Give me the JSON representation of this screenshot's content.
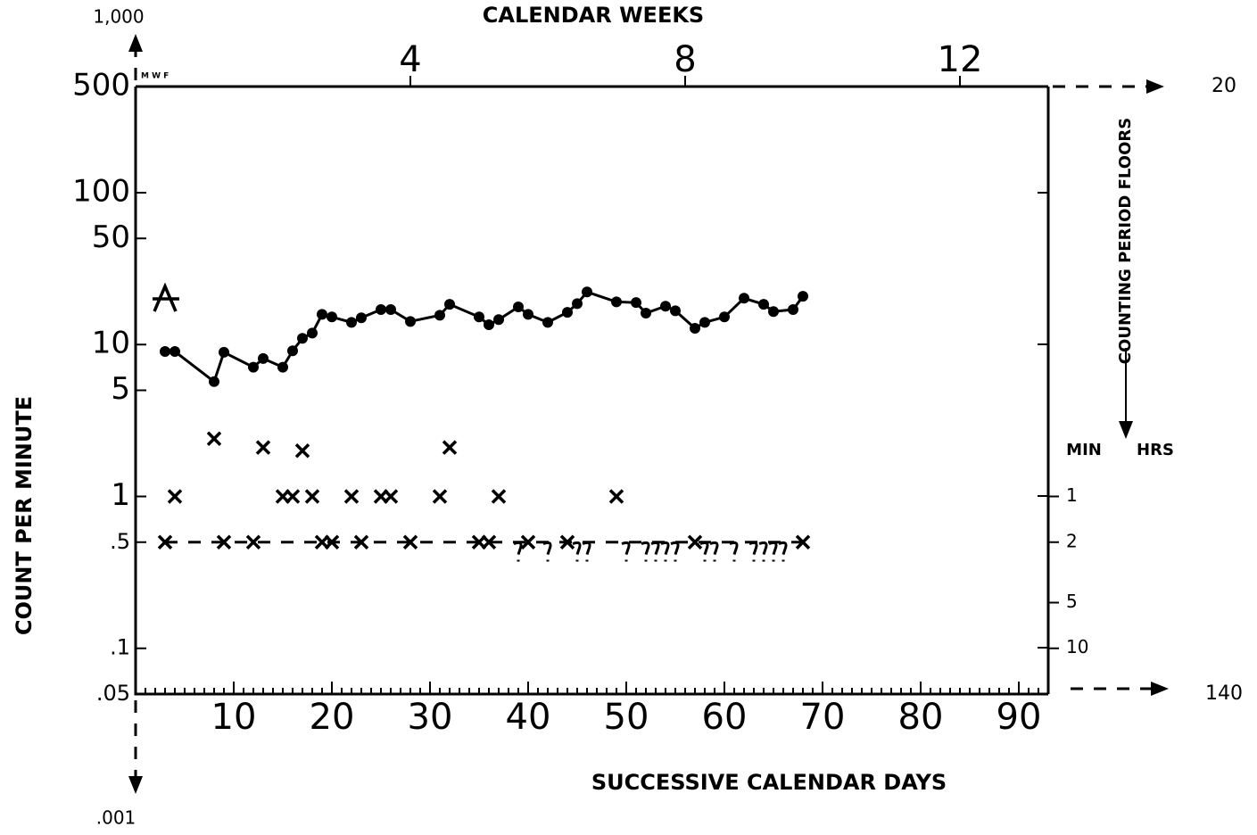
{
  "chart_data": {
    "type": "line",
    "title": "CALENDAR WEEKS",
    "x_label": "SUCCESSIVE CALENDAR DAYS",
    "y_label": "COUNT PER MINUTE",
    "y2_label": "COUNTING PERIOD FLOORS",
    "y2_units": [
      "MIN",
      "HRS"
    ],
    "annotations": {
      "top_extent": "1,000",
      "bottom_extent": ".001",
      "right_top": "20",
      "right_bottom": "140",
      "days": "M W F"
    },
    "log_y": true,
    "xlim": [
      0,
      93
    ],
    "xticks": [
      10,
      20,
      30,
      40,
      50,
      60,
      70,
      80,
      90
    ],
    "x2ticks": [
      {
        "value": 28,
        "label": "4"
      },
      {
        "value": 56,
        "label": "8"
      },
      {
        "value": 84,
        "label": "12"
      }
    ],
    "ylim": [
      0.05,
      500
    ],
    "yticks": [
      500,
      100,
      50,
      10,
      5,
      1,
      {
        "value": 0.5,
        "label": ".5"
      },
      {
        "value": 0.1,
        "label": ".1"
      },
      {
        "value": 0.05,
        "label": ".05"
      }
    ],
    "y2lim": [
      0.05,
      500
    ],
    "y2ticks": [
      1,
      {
        "value": 0.5,
        "label": "2"
      },
      {
        "value": 0.2,
        "label": "5"
      },
      {
        "value": 0.1,
        "label": "10"
      }
    ],
    "series": [
      {
        "marker": "dot",
        "line": true,
        "color": "#000",
        "x": [
          3,
          4,
          8,
          9,
          12,
          13,
          15,
          16,
          17,
          18,
          19,
          20,
          22,
          23,
          25,
          26,
          28,
          31,
          32,
          35,
          36,
          37,
          39,
          40,
          42,
          44,
          45,
          46,
          49,
          51,
          52,
          54,
          55,
          57,
          58,
          60,
          62,
          64,
          65,
          67,
          68
        ],
        "values": [
          9,
          9,
          5.7,
          8.9,
          7.1,
          8.1,
          7.1,
          9.1,
          11,
          11.9,
          15.8,
          15.2,
          14,
          15,
          17,
          17,
          14.2,
          15.6,
          18.4,
          15.2,
          13.5,
          14.6,
          17.7,
          15.8,
          14,
          16.3,
          18.6,
          22.2,
          19.1,
          18.9,
          16.1,
          17.9,
          16.7,
          12.8,
          14,
          15.2,
          20.2,
          18.4,
          16.5,
          17,
          20.8
        ]
      },
      {
        "marker": "x",
        "line": false,
        "color": "#000",
        "x": [
          8,
          4,
          13,
          17,
          32,
          15,
          16,
          18,
          22,
          25,
          26,
          31,
          37,
          49,
          3,
          9,
          12,
          19,
          20,
          23,
          28,
          35,
          36,
          40,
          44,
          57,
          68
        ],
        "values": [
          2.4,
          1,
          2.1,
          2,
          2.1,
          1,
          1,
          1,
          1,
          1,
          1,
          1,
          1,
          1,
          0.5,
          0.5,
          0.5,
          0.5,
          0.5,
          0.5,
          0.5,
          0.5,
          0.5,
          0.5,
          0.5,
          0.5,
          0.5
        ]
      },
      {
        "marker": "?",
        "line": false,
        "color": "#000",
        "x": [
          39,
          42,
          45,
          46,
          50,
          52,
          53,
          54,
          55,
          58,
          59,
          61,
          63,
          64,
          65,
          66
        ],
        "values": [
          0.45,
          0.45,
          0.45,
          0.45,
          0.45,
          0.45,
          0.45,
          0.45,
          0.45,
          0.45,
          0.45,
          0.45,
          0.45,
          0.45,
          0.45,
          0.45
        ]
      },
      {
        "marker": "star",
        "line": false,
        "color": "#000",
        "x": [
          3
        ],
        "values": [
          20
        ]
      }
    ],
    "floor": {
      "x": [
        3,
        68
      ],
      "value": 0.5
    }
  }
}
